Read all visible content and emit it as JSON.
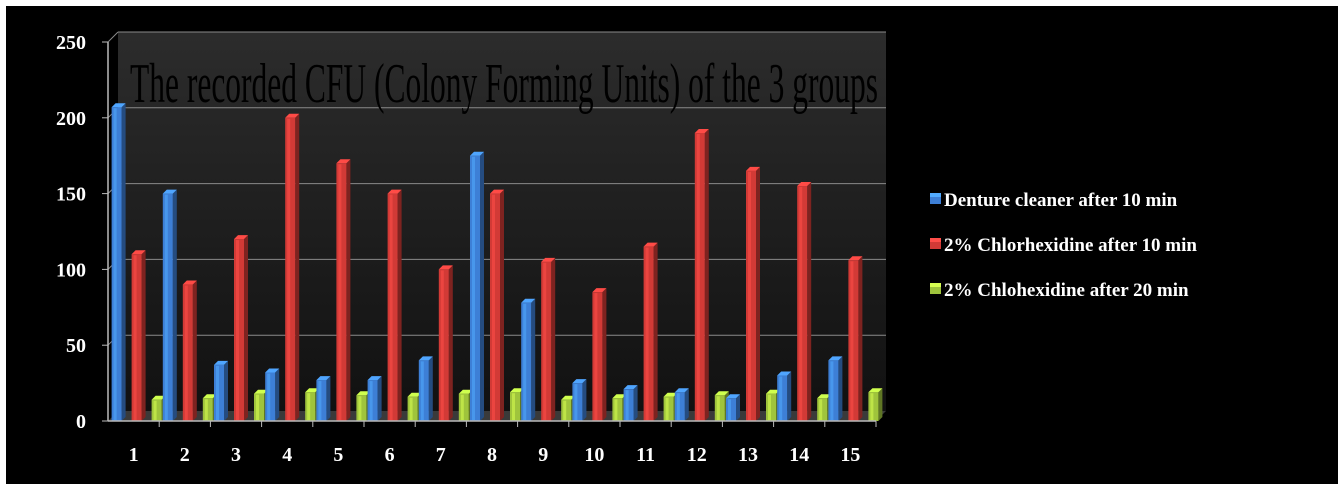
{
  "chart_data": {
    "type": "bar",
    "title": "The recorded CFU (Colony Forming Units) of the 3 groups",
    "xlabel": "",
    "ylabel": "",
    "ylim": [
      0,
      250
    ],
    "yticks": [
      0,
      50,
      100,
      150,
      200,
      250
    ],
    "grid": true,
    "legend": "right",
    "categories": [
      "1",
      "2",
      "3",
      "4",
      "5",
      "6",
      "7",
      "8",
      "9",
      "10",
      "11",
      "12",
      "13",
      "14",
      "15"
    ],
    "series": [
      {
        "name": "Denture cleaner after 10 min",
        "color": "#3d7fd6",
        "values": [
          207,
          150,
          37,
          32,
          27,
          27,
          40,
          175,
          78,
          25,
          21,
          19,
          15,
          30,
          40
        ]
      },
      {
        "name": "2% Chlorhexidine after  10 min",
        "color": "#d23a36",
        "values": [
          110,
          90,
          120,
          200,
          170,
          150,
          100,
          150,
          105,
          85,
          115,
          190,
          165,
          155,
          106
        ]
      },
      {
        "name": "2% Chlohexidine after 20 min",
        "color": "#9fc43c",
        "values": [
          14,
          15,
          18,
          19,
          17,
          16,
          18,
          19,
          14,
          15,
          16,
          17,
          18,
          15,
          19
        ]
      }
    ]
  }
}
